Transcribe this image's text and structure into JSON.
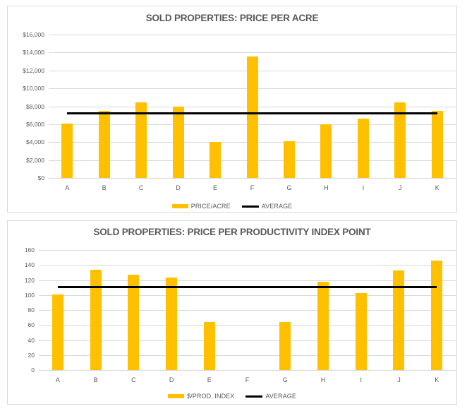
{
  "colors": {
    "bar": "#FFC000",
    "average_line": "#000000",
    "gridline": "#D9D9D9",
    "text": "#595959",
    "panel_border": "#D9D9D9",
    "background": "#FFFFFF"
  },
  "chart_data": [
    {
      "type": "bar",
      "title": "SOLD PROPERTIES: PRICE PER ACRE",
      "categories": [
        "A",
        "B",
        "C",
        "D",
        "E",
        "F",
        "G",
        "H",
        "I",
        "J",
        "K"
      ],
      "series": [
        {
          "name": "PRICE/ACRE",
          "type": "bar",
          "values": [
            6100,
            7450,
            8400,
            8000,
            4000,
            13550,
            4100,
            6000,
            6600,
            8450,
            7500
          ]
        },
        {
          "name": "AVERAGE",
          "type": "line",
          "value": 7286
        }
      ],
      "ylim": [
        0,
        16000
      ],
      "ytick_step": 2000,
      "yticks": [
        "$16,000",
        "$14,000",
        "$12,000",
        "$10,000",
        "$8,000",
        "$6,000",
        "$4,000",
        "$2,000",
        "$0"
      ],
      "xlabel": "",
      "ylabel": "",
      "grid": true,
      "legend_position": "bottom"
    },
    {
      "type": "bar",
      "title": "SOLD PROPERTIES: PRICE PER PRODUCTIVITY INDEX  POINT",
      "categories": [
        "A",
        "B",
        "C",
        "D",
        "E",
        "F",
        "G",
        "H",
        "I",
        "J",
        "K"
      ],
      "series": [
        {
          "name": "$/PROD. INDEX",
          "type": "bar",
          "values": [
            101,
            134,
            127,
            123,
            64,
            null,
            64,
            118,
            103,
            133,
            146
          ]
        },
        {
          "name": "AVERAGE",
          "type": "line",
          "value": 111.3
        }
      ],
      "ylim": [
        0,
        160
      ],
      "ytick_step": 20,
      "yticks": [
        "160",
        "140",
        "120",
        "100",
        "80",
        "60",
        "40",
        "20",
        "0"
      ],
      "xlabel": "",
      "ylabel": "",
      "grid": true,
      "legend_position": "bottom"
    }
  ]
}
